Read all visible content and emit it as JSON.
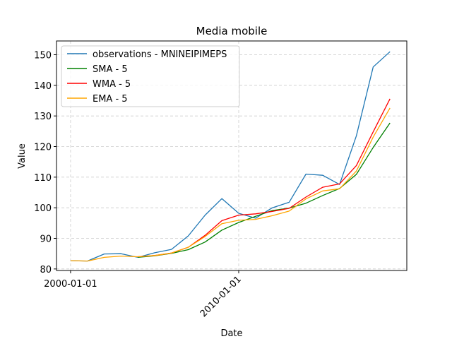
{
  "chart_data": {
    "type": "line",
    "title": "Media mobile",
    "xlabel": "Date",
    "ylabel": "Value",
    "x": [
      "2000-01-01",
      "2001-01-01",
      "2002-01-01",
      "2003-01-01",
      "2004-01-01",
      "2005-01-01",
      "2006-01-01",
      "2007-01-01",
      "2008-01-01",
      "2009-01-01",
      "2010-01-01",
      "2011-01-01",
      "2012-01-01",
      "2013-01-01",
      "2014-01-01",
      "2015-01-01",
      "2016-01-01",
      "2017-01-01",
      "2018-01-01",
      "2019-01-01"
    ],
    "xticks": [
      "2000-01-01",
      "2010-01-01"
    ],
    "xlim": [
      "1999-03-01",
      "2020-01-01"
    ],
    "ylim": [
      79.5,
      154.5
    ],
    "yticks": [
      80,
      90,
      100,
      110,
      120,
      130,
      140,
      150
    ],
    "grid": true,
    "legend_position": "top-left",
    "series": [
      {
        "name": "observations - MNINEIPIMEPS",
        "color": "#1f77b4",
        "values": [
          82.7,
          82.6,
          84.9,
          85.0,
          83.8,
          85.3,
          86.4,
          90.8,
          97.6,
          103.0,
          98.2,
          96.6,
          100.0,
          101.8,
          111.0,
          110.6,
          107.6,
          123.5,
          146.0,
          151.0
        ]
      },
      {
        "name": "SMA - 5",
        "color": "#008000",
        "values": [
          null,
          null,
          null,
          null,
          83.8,
          84.3,
          85.1,
          86.3,
          88.8,
          92.7,
          95.2,
          97.2,
          99.1,
          99.9,
          101.5,
          104.0,
          106.3,
          110.9,
          119.7,
          127.7
        ]
      },
      {
        "name": "WMA - 5",
        "color": "#ff0000",
        "values": [
          null,
          null,
          null,
          null,
          84.0,
          84.4,
          85.2,
          87.1,
          91.0,
          95.8,
          97.6,
          98.0,
          98.8,
          99.8,
          103.5,
          106.7,
          107.8,
          113.8,
          124.8,
          135.6
        ]
      },
      {
        "name": "EMA - 5",
        "color": "#ffa500",
        "values": [
          82.7,
          82.6,
          83.8,
          84.2,
          84.0,
          84.4,
          85.2,
          87.1,
          90.6,
          94.8,
          95.9,
          96.2,
          97.4,
          98.9,
          102.9,
          105.5,
          106.2,
          112.0,
          123.1,
          132.6
        ]
      }
    ]
  }
}
